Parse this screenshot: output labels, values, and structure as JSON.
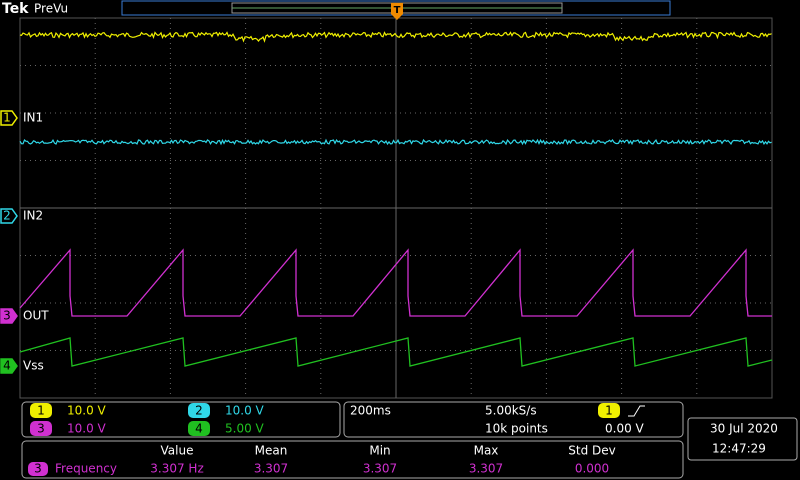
{
  "header": {
    "brand": "Tek",
    "mode": "PreVu",
    "trigger_marker": "T"
  },
  "channels": [
    {
      "number": "1",
      "label": "IN1"
    },
    {
      "number": "2",
      "label": "IN2"
    },
    {
      "number": "3",
      "label": "OUT"
    },
    {
      "number": "4",
      "label": "Vss"
    }
  ],
  "vertical": [
    {
      "number": "1",
      "scale": "10.0 V"
    },
    {
      "number": "2",
      "scale": "10.0 V"
    },
    {
      "number": "3",
      "scale": "10.0 V"
    },
    {
      "number": "4",
      "scale": "5.00 V"
    }
  ],
  "horizontal": {
    "time_scale": "200ms",
    "sample_rate": "5.00kS/s",
    "record_length": "10k points",
    "trigger_source": "1",
    "trigger_level": "0.00 V"
  },
  "datetime": {
    "date": "30 Jul  2020",
    "time": "12:47:29"
  },
  "measurements": {
    "headers": [
      "Value",
      "Mean",
      "Min",
      "Max",
      "Std Dev"
    ],
    "rows": [
      {
        "source": "3",
        "name": "Frequency",
        "values": [
          "3.307 Hz",
          "3.307",
          "3.307",
          "3.307",
          "0.000"
        ]
      }
    ]
  }
}
